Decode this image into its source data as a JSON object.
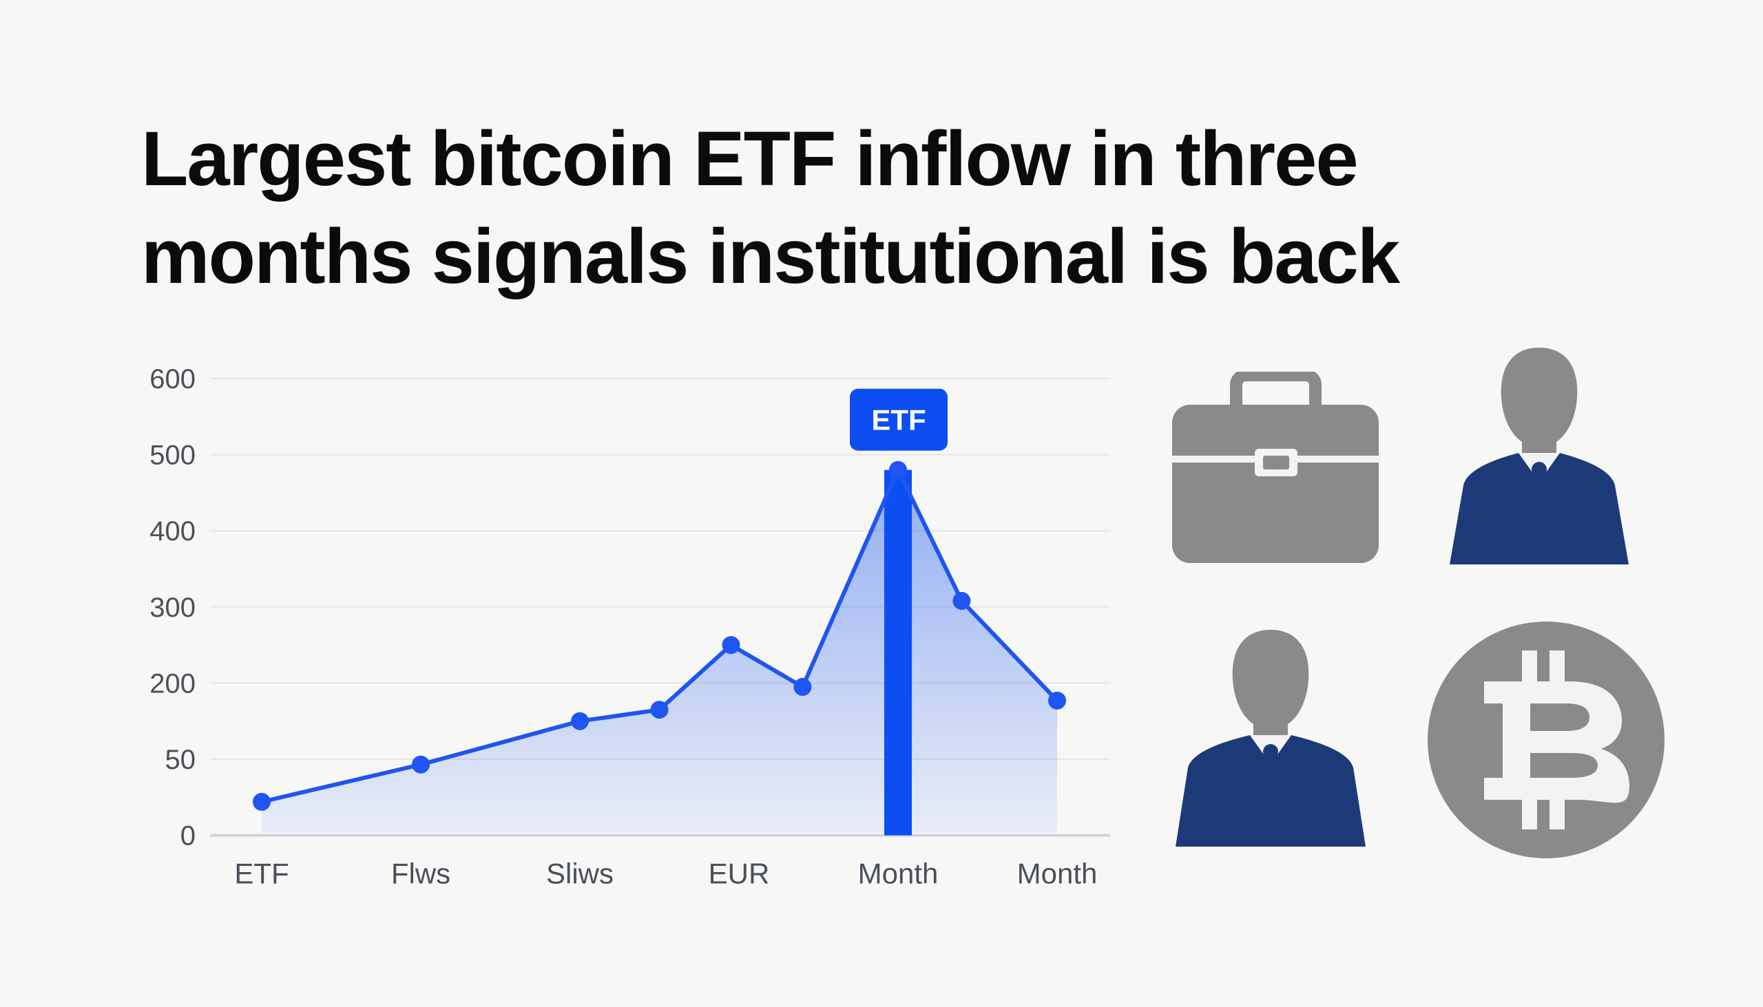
{
  "headline": {
    "line1": "Largest bitcoin ETF inflow in three",
    "line2": "months signals institutional is back"
  },
  "chart_data": {
    "type": "line",
    "title": "",
    "xlabel": "",
    "ylabel": "",
    "y_ticks": [
      "600",
      "500",
      "400",
      "300",
      "200",
      "50",
      "0"
    ],
    "x_tick_labels": [
      "ETF",
      "Flws",
      "Sliws",
      "EUR",
      "Month",
      "Month"
    ],
    "grid": true,
    "series": [
      {
        "color": "#1f55f0",
        "points": [
          {
            "pos": 0,
            "value": 0.44
          },
          {
            "pos": 1,
            "value": 0.93
          },
          {
            "pos": 2,
            "value": 1.5
          },
          {
            "pos": 2.5,
            "value": 1.65
          },
          {
            "pos": 2.95,
            "value": 2.5
          },
          {
            "pos": 3.4,
            "value": 1.95
          },
          {
            "pos": 4,
            "value": 4.8
          },
          {
            "pos": 4.4,
            "value": 3.08
          },
          {
            "pos": 5,
            "value": 1.77
          }
        ]
      }
    ],
    "highlight": {
      "pos": 4,
      "value": 4.8,
      "label": "ETF",
      "color": "#0d4ef2"
    }
  },
  "icons": [
    "briefcase-icon",
    "businessman-icon",
    "businessman-icon",
    "bitcoin-icon"
  ],
  "colors": {
    "navy": "#1d3a78",
    "gray": "#8a8a8a",
    "blue": "#1f55f0"
  }
}
